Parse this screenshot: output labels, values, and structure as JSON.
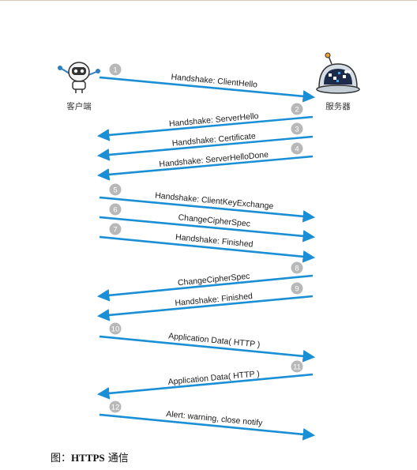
{
  "actors": {
    "client": "客户端",
    "server": "服务器"
  },
  "colors": {
    "arrow": "#1a8fd6",
    "badge": "#b8b8b8",
    "border": "#d9c9b0"
  },
  "icons": {
    "client": "robot-icon",
    "server": "dome-robot-icon"
  },
  "messages": [
    {
      "step": "1",
      "label": "Handshake: ClientHello",
      "direction": "client-to-server"
    },
    {
      "step": "2",
      "label": "Handshake: ServerHello",
      "direction": "server-to-client"
    },
    {
      "step": "3",
      "label": "Handshake: Certificate",
      "direction": "server-to-client"
    },
    {
      "step": "4",
      "label": "Handshake: ServerHelloDone",
      "direction": "server-to-client"
    },
    {
      "step": "5",
      "label": "Handshake: ClientKeyExchange",
      "direction": "client-to-server"
    },
    {
      "step": "6",
      "label": "ChangeCipherSpec",
      "direction": "client-to-server"
    },
    {
      "step": "7",
      "label": "Handshake: Finished",
      "direction": "client-to-server"
    },
    {
      "step": "8",
      "label": "ChangeCipherSpec",
      "direction": "server-to-client"
    },
    {
      "step": "9",
      "label": "Handshake: Finished",
      "direction": "server-to-client"
    },
    {
      "step": "10",
      "label": "Application Data( HTTP )",
      "direction": "client-to-server"
    },
    {
      "step": "11",
      "label": "Application Data( HTTP )",
      "direction": "server-to-client"
    },
    {
      "step": "12",
      "label": "Alert: warning, close notify",
      "direction": "client-to-server"
    }
  ],
  "caption": {
    "prefix": "图：",
    "bold": "HTTPS",
    "suffix": " 通信"
  }
}
